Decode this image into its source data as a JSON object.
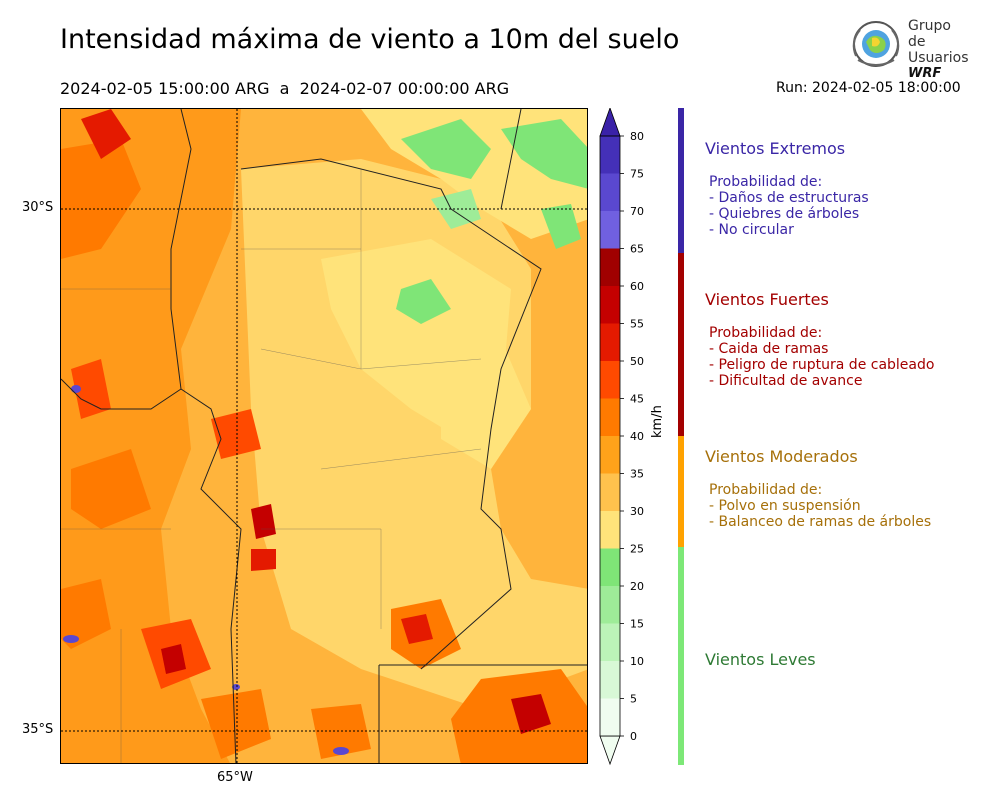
{
  "title": "Intensidad máxima de viento a 10m del suelo",
  "period": "2024-02-05 15:00:00 ARG  a  2024-02-07 00:00:00 ARG",
  "run": "Run: 2024-02-05 18:00:00",
  "logo": {
    "line1": "Grupo de",
    "line2": "Usuarios",
    "brand": "WRF"
  },
  "map": {
    "lat_labels": [
      "30°S",
      "35°S"
    ],
    "lon_labels": [
      "65°W"
    ]
  },
  "colorbar": {
    "unit": "km/h",
    "ticks": [
      "0",
      "5",
      "10",
      "15",
      "20",
      "25",
      "30",
      "35",
      "40",
      "45",
      "50",
      "55",
      "60",
      "65",
      "70",
      "75",
      "80"
    ],
    "colors": [
      "#f0fdf0",
      "#d8f8d6",
      "#bcf3b8",
      "#9eec98",
      "#7fe577",
      "#ffe37a",
      "#ffc24d",
      "#ffa21a",
      "#ff7a00",
      "#ff4a00",
      "#e41a00",
      "#c40000",
      "#a00000",
      "#7060e0",
      "#5a48d0",
      "#4430b8",
      "#3a22a8"
    ]
  },
  "legend": [
    {
      "name": "Vientos Extremos",
      "color": "#3a26a6",
      "bar_color": "#3a26a6",
      "heading": "Probabilidad de:",
      "items": [
        "- Daños de estructuras",
        "- Quiebres de árboles",
        "- No circular"
      ]
    },
    {
      "name": "Vientos Fuertes",
      "color": "#a30000",
      "bar_color": "#a30000",
      "heading": "Probabilidad de:",
      "items": [
        "- Caida de ramas",
        "- Peligro de ruptura de cableado",
        "- Dificultad de avance"
      ]
    },
    {
      "name": "Vientos Moderados",
      "color": "#a6700a",
      "bar_color": "#ffa200",
      "heading": "Probabilidad de:",
      "items": [
        "- Polvo en suspensión",
        "- Balanceo de ramas de árboles"
      ]
    },
    {
      "name": "Vientos Leves",
      "color": "#2e7a34",
      "bar_color": "#7de877",
      "heading": "",
      "items": []
    }
  ]
}
